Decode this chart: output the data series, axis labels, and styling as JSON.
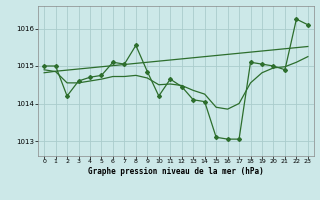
{
  "background_color": "#cce8e8",
  "grid_color": "#aacccc",
  "line_color": "#2d6e2d",
  "xlabel": "Graphe pression niveau de la mer (hPa)",
  "ylim": [
    1012.6,
    1016.6
  ],
  "yticks": [
    1013,
    1014,
    1015,
    1016
  ],
  "series_main": [
    1015.0,
    1015.0,
    1014.2,
    1014.6,
    1014.7,
    1014.75,
    1015.1,
    1015.05,
    1015.55,
    1014.85,
    1014.2,
    1014.65,
    1014.45,
    1014.1,
    1014.05,
    1013.1,
    1013.05,
    1013.05,
    1015.1,
    1015.05,
    1015.0,
    1014.9,
    1016.25,
    1016.1
  ],
  "series_linear": [
    1014.82,
    1014.86,
    1014.89,
    1014.92,
    1014.95,
    1014.98,
    1015.01,
    1015.04,
    1015.07,
    1015.1,
    1015.13,
    1015.16,
    1015.19,
    1015.22,
    1015.25,
    1015.28,
    1015.31,
    1015.34,
    1015.37,
    1015.4,
    1015.43,
    1015.46,
    1015.49,
    1015.52
  ],
  "series_smooth": [
    1014.9,
    1014.85,
    1014.55,
    1014.55,
    1014.6,
    1014.65,
    1014.72,
    1014.72,
    1014.75,
    1014.68,
    1014.5,
    1014.52,
    1014.48,
    1014.35,
    1014.25,
    1013.9,
    1013.85,
    1014.0,
    1014.55,
    1014.82,
    1014.95,
    1014.98,
    1015.1,
    1015.25
  ],
  "figsize": [
    3.2,
    2.0
  ],
  "dpi": 100
}
